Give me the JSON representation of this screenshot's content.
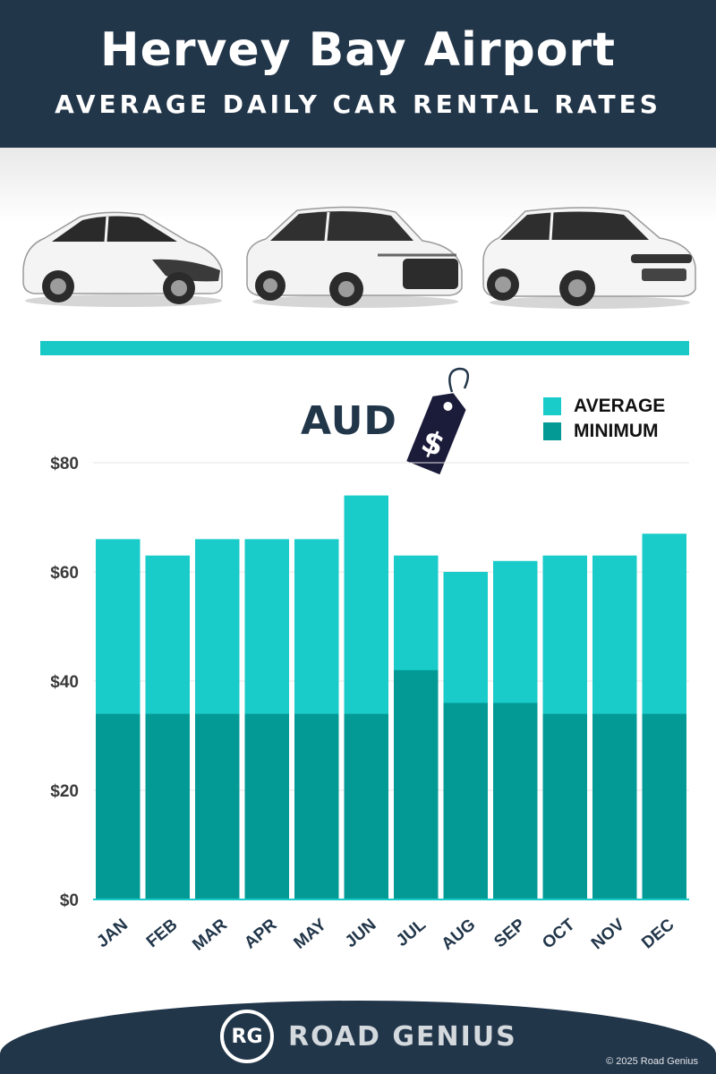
{
  "header": {
    "title": "Hervey Bay Airport",
    "subtitle": "AVERAGE DAILY CAR RENTAL RATES"
  },
  "currency_tag": {
    "label": "AUD",
    "symbol": "$"
  },
  "footer": {
    "logo_text": "RG",
    "brand": "ROAD GENIUS",
    "copyright": "© 2025 Road Genius"
  },
  "colors": {
    "header_bg": "#22364a",
    "average": "#19cbc9",
    "minimum": "#039a96",
    "rule": "#19c9c6"
  },
  "chart_data": {
    "type": "bar",
    "categories": [
      "JAN",
      "FEB",
      "MAR",
      "APR",
      "MAY",
      "JUN",
      "JUL",
      "AUG",
      "SEP",
      "OCT",
      "NOV",
      "DEC"
    ],
    "series": [
      {
        "name": "AVERAGE",
        "values": [
          66,
          63,
          66,
          66,
          66,
          74,
          63,
          60,
          62,
          63,
          63,
          67
        ]
      },
      {
        "name": "MINIMUM",
        "values": [
          34,
          34,
          34,
          34,
          34,
          34,
          42,
          36,
          36,
          34,
          34,
          34
        ]
      }
    ],
    "yticks": [
      "$0",
      "$20",
      "$40",
      "$60",
      "$80"
    ],
    "ylim": [
      0,
      80
    ],
    "grid": true,
    "legend": "top-right",
    "title": "",
    "xlabel": "",
    "ylabel": ""
  }
}
